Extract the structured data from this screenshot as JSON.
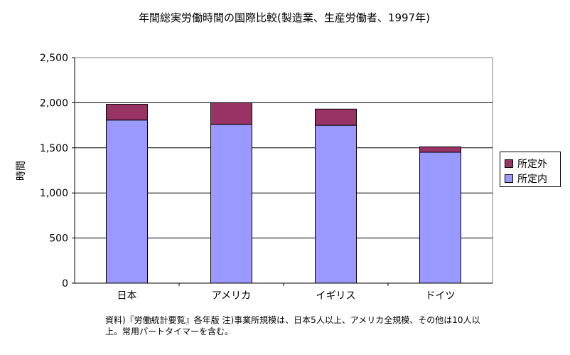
{
  "chart_data": {
    "type": "bar",
    "stacked": true,
    "title": "年間総実労働時間の国際比較(製造業、生産労働者、1997年)",
    "ylabel": "時間",
    "xlabel": "",
    "categories": [
      "日本",
      "アメリカ",
      "イギリス",
      "ドイツ"
    ],
    "ylim": [
      0,
      2500
    ],
    "yticks": [
      0,
      500,
      1000,
      1500,
      2000,
      2500
    ],
    "ytick_labels": [
      "0",
      "500",
      "1,000",
      "1,500",
      "2,000",
      "2,500"
    ],
    "series": [
      {
        "name": "所定内",
        "values": [
          1808,
          1760,
          1750,
          1451
        ],
        "color": "#9999ff"
      },
      {
        "name": "所定外",
        "values": [
          175,
          240,
          180,
          60
        ],
        "color": "#993366"
      }
    ],
    "grid": true,
    "legend_position": "right",
    "plot_background": "#ffffff"
  },
  "legend": {
    "items": [
      "所定外",
      "所定内"
    ]
  },
  "note": "資料)『労働統計要覧』各年版 注)事業所規模は、日本5人以上、アメリカ全規模、その他は10人以上。常用パートタイマーを含む。"
}
